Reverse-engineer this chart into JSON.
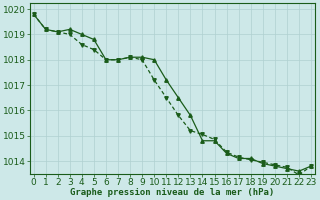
{
  "title": "Graphe pression niveau de la mer (hPa)",
  "background_color": "#cde8e8",
  "grid_color": "#b0d0d0",
  "line_color": "#1a5c1a",
  "x_values": [
    0,
    1,
    2,
    3,
    4,
    5,
    6,
    7,
    8,
    9,
    10,
    11,
    12,
    13,
    14,
    15,
    16,
    17,
    18,
    19,
    20,
    21,
    22,
    23
  ],
  "series1": [
    1019.8,
    1019.2,
    1019.1,
    1019.2,
    1019.0,
    1018.8,
    1018.0,
    1018.0,
    1018.1,
    1018.1,
    1018.0,
    1017.2,
    1016.5,
    1015.8,
    1014.8,
    1014.8,
    1014.3,
    1014.1,
    1014.1,
    1013.9,
    1013.8,
    1013.7,
    1013.6,
    1013.8
  ],
  "series2": [
    1019.8,
    1019.2,
    1019.1,
    1019.0,
    1018.6,
    1018.4,
    1018.0,
    1018.0,
    1018.1,
    1018.0,
    1017.2,
    1016.5,
    1015.8,
    1015.2,
    1015.05,
    1014.85,
    1014.35,
    1014.15,
    1014.05,
    1013.95,
    1013.85,
    1013.75,
    1013.45,
    1013.8
  ],
  "ylim_min": 1013.5,
  "ylim_max": 1020.25,
  "yticks": [
    1014,
    1015,
    1016,
    1017,
    1018,
    1019,
    1020
  ],
  "tick_fontsize": 6.5,
  "title_fontsize": 6.5,
  "marker_size": 2.5,
  "linewidth": 0.9
}
